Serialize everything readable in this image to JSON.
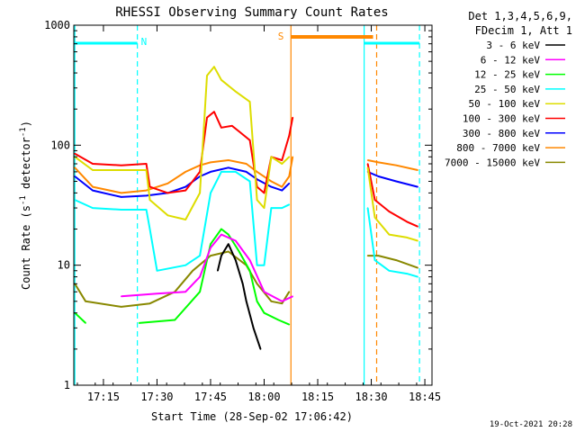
{
  "chart_data": {
    "type": "line",
    "title": "RHESSI Observing Summary Count Rates",
    "xlabel": "Start Time (28-Sep-02 17:06:42)",
    "ylabel_main": "Count Rate (s",
    "ylabel_sup1": "-1",
    "ylabel_mid": " detector",
    "ylabel_sup2": "-1",
    "ylabel_end": ")",
    "yscale": "log",
    "ylim": [
      1,
      1000
    ],
    "xlim": [
      "17:06:42",
      "18:47:00"
    ],
    "xticks": [
      "17:15",
      "17:30",
      "17:45",
      "18:00",
      "18:15",
      "18:30",
      "18:45"
    ],
    "yticks": [
      "1",
      "10",
      "100",
      "1000"
    ],
    "legend_header": [
      "Det 1,3,4,5,6,9,",
      "FDecim 1, Att 1"
    ],
    "legend_position": "right",
    "footer_date": "19-Oct-2021 20:28",
    "markers": {
      "night_label": "N",
      "saa_label": "S"
    },
    "series": [
      {
        "name": "3 - 6 keV",
        "color": "#000000",
        "points": [
          [
            "17:47",
            9
          ],
          [
            "17:48",
            12
          ],
          [
            "17:50",
            15
          ],
          [
            "17:52",
            11
          ],
          [
            "17:54",
            7
          ],
          [
            "17:55",
            5
          ],
          [
            "17:57",
            3
          ],
          [
            "17:59",
            2
          ]
        ]
      },
      {
        "name": "6 - 12 keV",
        "color": "#ff00ff",
        "points": [
          [
            "17:20",
            5.5
          ],
          [
            "17:30",
            5.8
          ],
          [
            "17:38",
            6
          ],
          [
            "17:42",
            8
          ],
          [
            "17:45",
            14
          ],
          [
            "17:48",
            18
          ],
          [
            "17:52",
            16
          ],
          [
            "17:56",
            11
          ],
          [
            "18:00",
            6
          ],
          [
            "18:05",
            5
          ],
          [
            "18:08",
            5.5
          ]
        ]
      },
      {
        "name": "12 - 25 keV",
        "color": "#00ff00",
        "points": [
          [
            "17:07",
            4
          ],
          [
            "17:10",
            3.3
          ],
          [
            "17:25",
            3.3
          ],
          [
            "17:35",
            3.5
          ],
          [
            "17:42",
            6
          ],
          [
            "17:45",
            15
          ],
          [
            "17:48",
            20
          ],
          [
            "17:50",
            18
          ],
          [
            "17:53",
            13
          ],
          [
            "17:56",
            9
          ],
          [
            "17:58",
            5
          ],
          [
            "18:00",
            4
          ],
          [
            "18:04",
            3.5
          ],
          [
            "18:07",
            3.2
          ]
        ]
      },
      {
        "name": "25 - 50 keV",
        "color": "#00ffff",
        "points": [
          [
            "17:07",
            35
          ],
          [
            "17:12",
            30
          ],
          [
            "17:20",
            29
          ],
          [
            "17:27",
            29
          ],
          [
            "17:28",
            20
          ],
          [
            "17:30",
            9
          ],
          [
            "17:38",
            10
          ],
          [
            "17:42",
            12
          ],
          [
            "17:45",
            40
          ],
          [
            "17:48",
            60
          ],
          [
            "17:52",
            60
          ],
          [
            "17:56",
            50
          ],
          [
            "17:58",
            10
          ],
          [
            "18:00",
            10
          ],
          [
            "18:02",
            30
          ],
          [
            "18:05",
            30
          ],
          [
            "18:07",
            32
          ],
          [
            "18:29",
            30
          ],
          [
            "18:31",
            11
          ],
          [
            "18:35",
            9
          ],
          [
            "18:40",
            8.5
          ],
          [
            "18:43",
            8
          ]
        ]
      },
      {
        "name": "50 - 100 keV",
        "color": "#dddd00",
        "points": [
          [
            "17:07",
            80
          ],
          [
            "17:12",
            62
          ],
          [
            "17:20",
            62
          ],
          [
            "17:27",
            62
          ],
          [
            "17:28",
            35
          ],
          [
            "17:33",
            26
          ],
          [
            "17:38",
            24
          ],
          [
            "17:42",
            40
          ],
          [
            "17:44",
            380
          ],
          [
            "17:46",
            450
          ],
          [
            "17:48",
            350
          ],
          [
            "17:52",
            280
          ],
          [
            "17:56",
            230
          ],
          [
            "17:58",
            35
          ],
          [
            "18:00",
            30
          ],
          [
            "18:02",
            80
          ],
          [
            "18:05",
            70
          ],
          [
            "18:07",
            80
          ],
          [
            "18:29",
            65
          ],
          [
            "18:31",
            25
          ],
          [
            "18:35",
            18
          ],
          [
            "18:40",
            17
          ],
          [
            "18:43",
            16
          ]
        ]
      },
      {
        "name": "100 - 300 keV",
        "color": "#ff0000",
        "points": [
          [
            "17:07",
            85
          ],
          [
            "17:12",
            70
          ],
          [
            "17:20",
            68
          ],
          [
            "17:27",
            70
          ],
          [
            "17:28",
            45
          ],
          [
            "17:33",
            40
          ],
          [
            "17:38",
            42
          ],
          [
            "17:42",
            60
          ],
          [
            "17:44",
            170
          ],
          [
            "17:46",
            190
          ],
          [
            "17:48",
            140
          ],
          [
            "17:51",
            145
          ],
          [
            "17:53",
            130
          ],
          [
            "17:56",
            110
          ],
          [
            "17:58",
            45
          ],
          [
            "18:00",
            40
          ],
          [
            "18:02",
            80
          ],
          [
            "18:05",
            75
          ],
          [
            "18:07",
            120
          ],
          [
            "18:08",
            170
          ],
          [
            "18:29",
            70
          ],
          [
            "18:31",
            35
          ],
          [
            "18:35",
            28
          ],
          [
            "18:40",
            23
          ],
          [
            "18:43",
            21
          ]
        ]
      },
      {
        "name": "300 - 800 keV",
        "color": "#0000ff",
        "points": [
          [
            "17:07",
            55
          ],
          [
            "17:12",
            42
          ],
          [
            "17:20",
            37
          ],
          [
            "17:27",
            38
          ],
          [
            "17:33",
            40
          ],
          [
            "17:38",
            45
          ],
          [
            "17:42",
            55
          ],
          [
            "17:45",
            60
          ],
          [
            "17:50",
            65
          ],
          [
            "17:55",
            60
          ],
          [
            "17:58",
            52
          ],
          [
            "18:02",
            45
          ],
          [
            "18:05",
            42
          ],
          [
            "18:07",
            48
          ],
          [
            "18:29",
            60
          ],
          [
            "18:32",
            55
          ],
          [
            "18:37",
            50
          ],
          [
            "18:43",
            45
          ]
        ]
      },
      {
        "name": "800 - 7000 keV",
        "color": "#ff8800",
        "points": [
          [
            "17:07",
            65
          ],
          [
            "17:12",
            45
          ],
          [
            "17:20",
            40
          ],
          [
            "17:27",
            42
          ],
          [
            "17:33",
            48
          ],
          [
            "17:38",
            60
          ],
          [
            "17:42",
            68
          ],
          [
            "17:45",
            72
          ],
          [
            "17:50",
            75
          ],
          [
            "17:55",
            70
          ],
          [
            "17:58",
            60
          ],
          [
            "18:02",
            50
          ],
          [
            "18:05",
            45
          ],
          [
            "18:07",
            55
          ],
          [
            "18:08",
            80
          ],
          [
            "18:29",
            75
          ],
          [
            "18:32",
            72
          ],
          [
            "18:37",
            68
          ],
          [
            "18:43",
            62
          ]
        ]
      },
      {
        "name": "7000 - 15000 keV",
        "color": "#888800",
        "points": [
          [
            "17:07",
            7
          ],
          [
            "17:10",
            5
          ],
          [
            "17:20",
            4.5
          ],
          [
            "17:28",
            4.8
          ],
          [
            "17:35",
            6
          ],
          [
            "17:40",
            9
          ],
          [
            "17:45",
            12
          ],
          [
            "17:50",
            13
          ],
          [
            "17:55",
            10
          ],
          [
            "17:58",
            7
          ],
          [
            "18:02",
            5
          ],
          [
            "18:05",
            4.8
          ],
          [
            "18:07",
            6
          ],
          [
            "18:29",
            12
          ],
          [
            "18:32",
            12
          ],
          [
            "18:37",
            11
          ],
          [
            "18:43",
            9.5
          ]
        ]
      }
    ]
  }
}
